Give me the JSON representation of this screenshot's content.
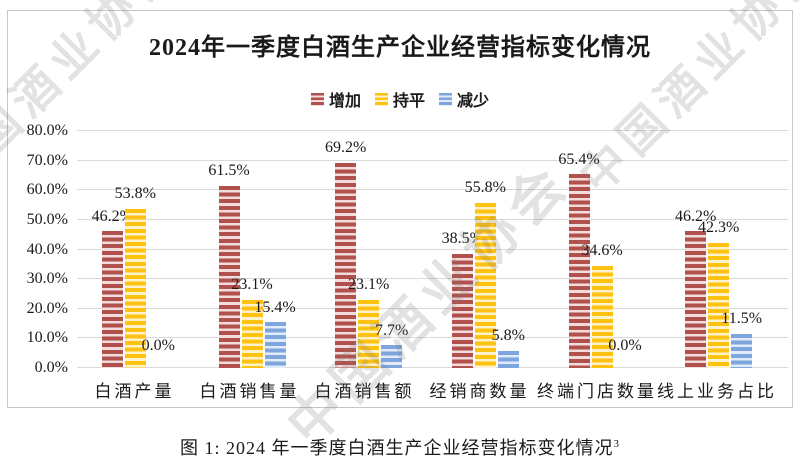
{
  "title": "2024年一季度白酒生产企业经营指标变化情况",
  "watermark": {
    "text": "中国酒业协会"
  },
  "caption": {
    "text": "图 1: 2024 年一季度白酒生产企业经营指标变化情况",
    "footnote_ref": "3"
  },
  "chart_data": {
    "type": "bar",
    "title": "2024年一季度白酒生产企业经营指标变化情况",
    "categories": [
      "白酒产量",
      "白酒销售量",
      "白酒销售额",
      "经销商数量",
      "终端门店数量",
      "线上业务占比"
    ],
    "series": [
      {
        "name": "增加",
        "color": "#B1514E",
        "color_light": "#F2DDDC",
        "values": [
          46.2,
          61.5,
          69.2,
          38.5,
          65.4,
          46.2
        ]
      },
      {
        "name": "持平",
        "color": "#FEC211",
        "color_light": "#FDF2CC",
        "values": [
          53.8,
          23.1,
          23.1,
          55.8,
          34.6,
          42.3
        ]
      },
      {
        "name": "减少",
        "color": "#7EA6DE",
        "color_light": "#E2EBF7",
        "values": [
          0.0,
          15.4,
          7.7,
          5.8,
          0.0,
          11.5
        ]
      }
    ],
    "y_ticks": [
      "0.0%",
      "10.0%",
      "20.0%",
      "30.0%",
      "40.0%",
      "50.0%",
      "60.0%",
      "70.0%",
      "80.0%"
    ],
    "ylim": [
      0,
      80
    ],
    "grid": true,
    "legend_position": "top",
    "value_label_format": "{value}%",
    "bar_pattern": "horizontal-stripes",
    "gridline_color": "#D9D9D9",
    "frame_border_color": "#C6C6C6"
  }
}
